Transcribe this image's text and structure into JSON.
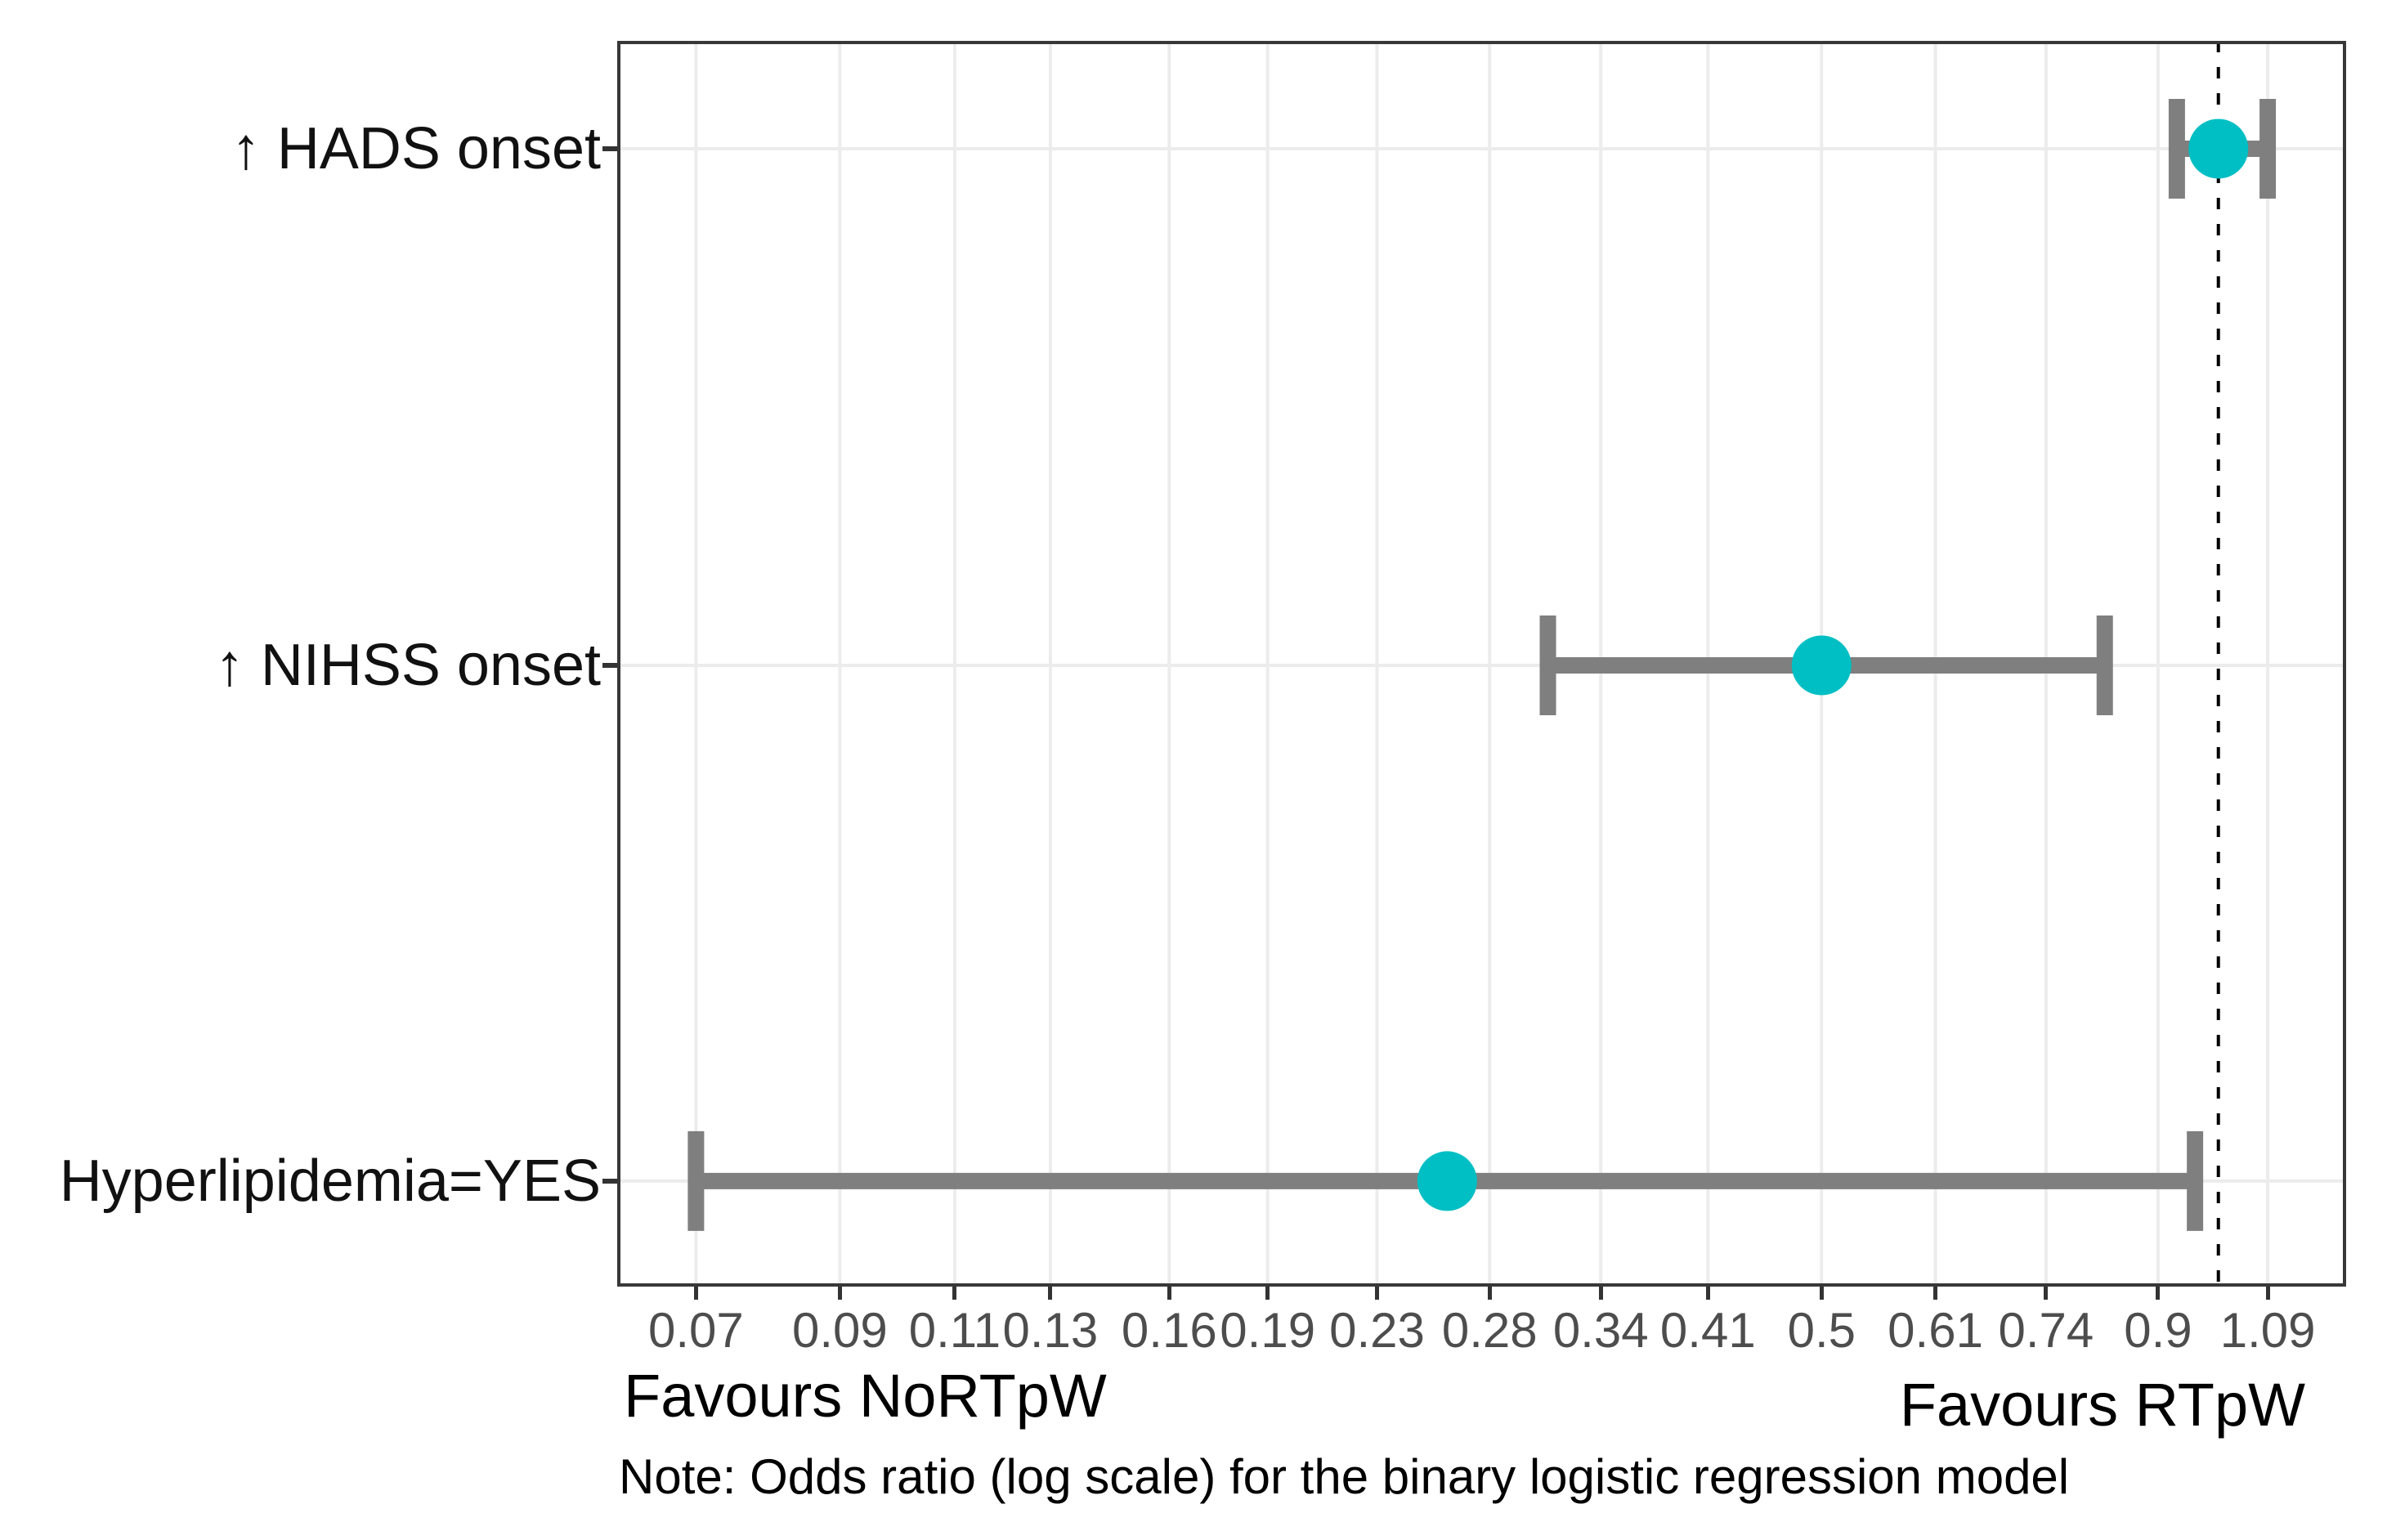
{
  "chart_data": {
    "type": "scatter",
    "subtype": "forest-plot-odds-ratios",
    "x_scale": "log",
    "x_domain": [
      0.061,
      1.25
    ],
    "x_ticks": [
      {
        "value": 0.07,
        "label": "0.07"
      },
      {
        "value": 0.09,
        "label": "0.09"
      },
      {
        "value": 0.11,
        "label": "0.11"
      },
      {
        "value": 0.13,
        "label": "0.13"
      },
      {
        "value": 0.16,
        "label": "0.16"
      },
      {
        "value": 0.19,
        "label": "0.19"
      },
      {
        "value": 0.23,
        "label": "0.23"
      },
      {
        "value": 0.28,
        "label": "0.28"
      },
      {
        "value": 0.34,
        "label": "0.34"
      },
      {
        "value": 0.41,
        "label": "0.41"
      },
      {
        "value": 0.5,
        "label": "0.5"
      },
      {
        "value": 0.61,
        "label": "0.61"
      },
      {
        "value": 0.74,
        "label": "0.74"
      },
      {
        "value": 0.9,
        "label": "0.9"
      },
      {
        "value": 1.09,
        "label": "1.09"
      }
    ],
    "reference_line_value": 1.0,
    "rows": [
      {
        "label": "↑ HADS onset",
        "odds_ratio": 1.0,
        "ci_low": 0.93,
        "ci_high": 1.09
      },
      {
        "label": "↑ NIHSS onset",
        "odds_ratio": 0.5,
        "ci_low": 0.31,
        "ci_high": 0.82
      },
      {
        "label": "Hyperlipidemia=YES",
        "odds_ratio": 0.26,
        "ci_low": 0.07,
        "ci_high": 0.96
      }
    ],
    "annotations": {
      "left": "Favours NoRTpW",
      "right": "Favours RTpW",
      "note": "Note: Odds ratio (log scale) for the binary logistic regression model"
    },
    "grid": true,
    "legend": false,
    "colors": {
      "point": "#00BFC4",
      "error_bar": "#7f7f7f",
      "gridline": "#ececec",
      "panel_border": "#383838",
      "reference_line": "#000000",
      "tick_label": "#4d4d4d",
      "row_label": "#111111",
      "background": "#ffffff"
    }
  }
}
